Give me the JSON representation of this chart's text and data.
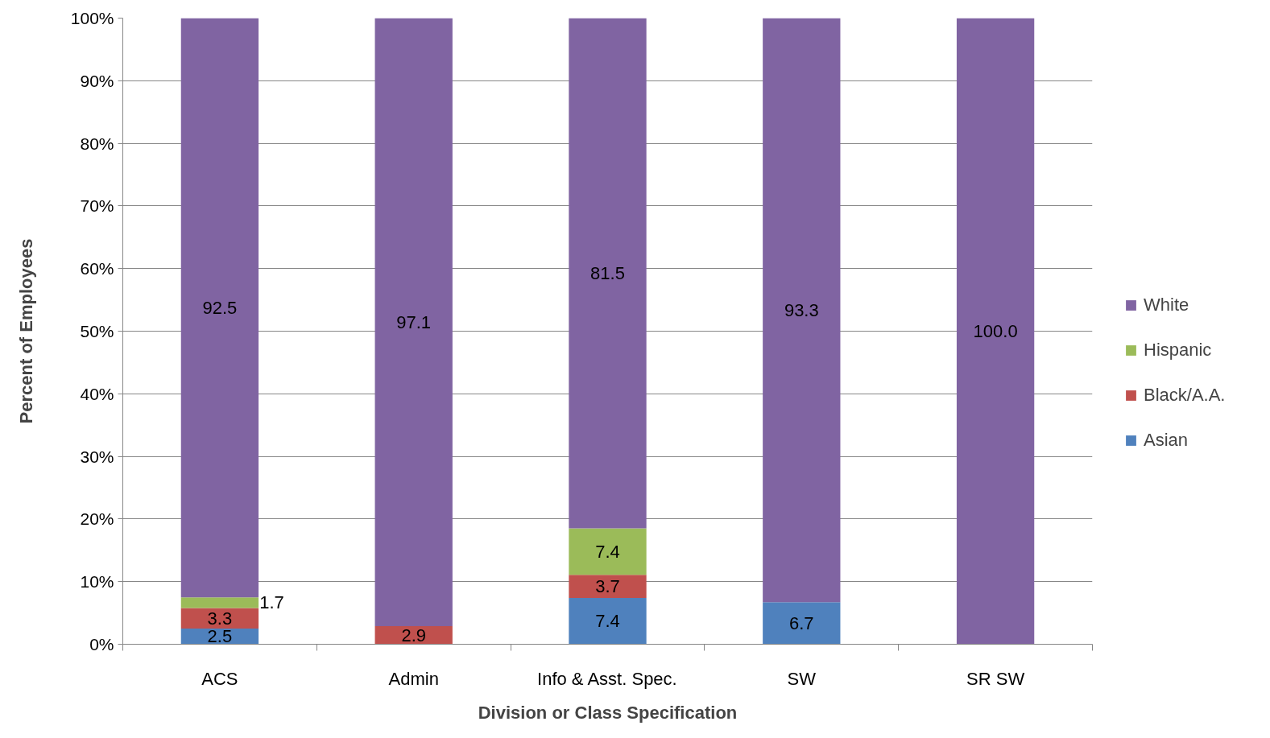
{
  "chart_data": {
    "type": "bar",
    "stacked": true,
    "xlabel": "Division or Class Specification",
    "ylabel": "Percent of Employees",
    "categories": [
      "ACS",
      "Admin",
      "Info & Asst. Spec.",
      "SW",
      "SR SW"
    ],
    "series": [
      {
        "name": "Asian",
        "color": "#4f81bd",
        "values": [
          2.5,
          null,
          7.4,
          6.7,
          null
        ],
        "value_labels": [
          "2.5",
          null,
          "7.4",
          "6.7",
          null
        ]
      },
      {
        "name": "Black/A.A.",
        "color": "#c0504d",
        "values": [
          3.3,
          2.9,
          3.7,
          null,
          null
        ],
        "value_labels": [
          "3.3",
          "2.9",
          "3.7",
          null,
          null
        ]
      },
      {
        "name": "Hispanic",
        "color": "#9bbb59",
        "values": [
          1.7,
          null,
          7.4,
          null,
          null
        ],
        "value_labels": [
          "1.7",
          null,
          "7.4",
          null,
          null
        ]
      },
      {
        "name": "White",
        "color": "#8064a2",
        "values": [
          92.5,
          97.1,
          81.5,
          93.3,
          100.0
        ],
        "value_labels": [
          "92.5",
          "97.1",
          "81.5",
          "93.3",
          "100.0"
        ]
      }
    ],
    "ylim": [
      0,
      100
    ],
    "yticks": [
      {
        "value": 0,
        "label": "0%"
      },
      {
        "value": 10,
        "label": "10%"
      },
      {
        "value": 20,
        "label": "20%"
      },
      {
        "value": 30,
        "label": "30%"
      },
      {
        "value": 40,
        "label": "40%"
      },
      {
        "value": 50,
        "label": "50%"
      },
      {
        "value": 60,
        "label": "60%"
      },
      {
        "value": 70,
        "label": "70%"
      },
      {
        "value": 80,
        "label": "80%"
      },
      {
        "value": 90,
        "label": "90%"
      },
      {
        "value": 100,
        "label": "100%"
      }
    ],
    "grid": "y",
    "legend": "right"
  }
}
